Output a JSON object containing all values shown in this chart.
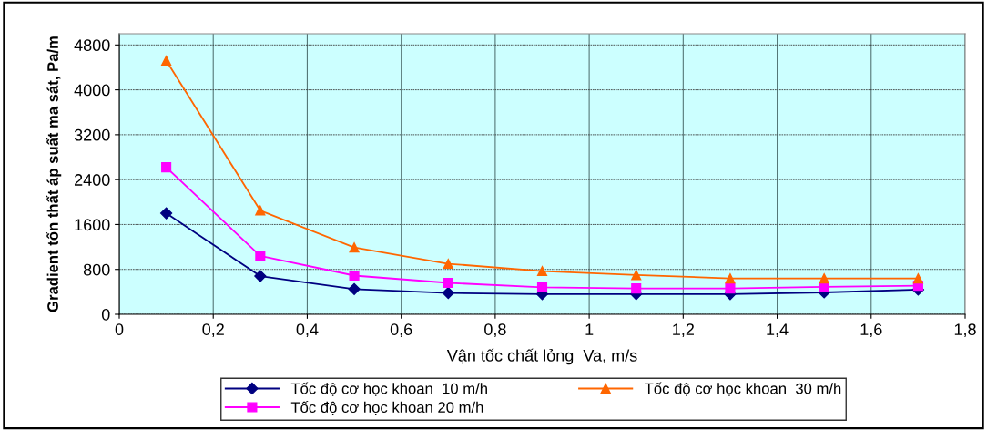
{
  "chart_data": {
    "type": "line",
    "xlabel": "Vận tốc chất lỏng  Va, m/s",
    "ylabel": "Gradient tổn thất áp suất ma sát, Pa/m",
    "x": [
      0.1,
      0.3,
      0.5,
      0.7,
      0.9,
      1.1,
      1.3,
      1.5,
      1.7
    ],
    "series": [
      {
        "name": "Tốc độ cơ học khoan  10 m/h",
        "color": "#000080",
        "marker": "diamond",
        "values": [
          1800,
          680,
          450,
          380,
          360,
          360,
          360,
          390,
          440
        ]
      },
      {
        "name": "Tốc độ cơ học khoan 20 m/h",
        "color": "#ff00ff",
        "marker": "square",
        "values": [
          2620,
          1040,
          690,
          560,
          480,
          460,
          460,
          490,
          510
        ]
      },
      {
        "name": "Tốc độ cơ học khoan  30 m/h",
        "color": "#ff6600",
        "marker": "triangle",
        "values": [
          4520,
          1850,
          1190,
          900,
          770,
          700,
          640,
          640,
          640
        ]
      }
    ],
    "xlim": [
      0,
      1.8
    ],
    "xticks": [
      {
        "value": 0,
        "label": "0"
      },
      {
        "value": 0.2,
        "label": "0,2"
      },
      {
        "value": 0.4,
        "label": "0,4"
      },
      {
        "value": 0.6,
        "label": "0,6"
      },
      {
        "value": 0.8,
        "label": "0,8"
      },
      {
        "value": 1,
        "label": "1"
      },
      {
        "value": 1.2,
        "label": "1,2"
      },
      {
        "value": 1.4,
        "label": "1,4"
      },
      {
        "value": 1.6,
        "label": "1,6"
      },
      {
        "value": 1.8,
        "label": "1,8"
      }
    ],
    "ylim": [
      0,
      5000
    ],
    "yticks": [
      0,
      800,
      1600,
      2400,
      3200,
      4000,
      4800
    ],
    "grid": true,
    "legend": "bottom",
    "line_style": "solid"
  }
}
